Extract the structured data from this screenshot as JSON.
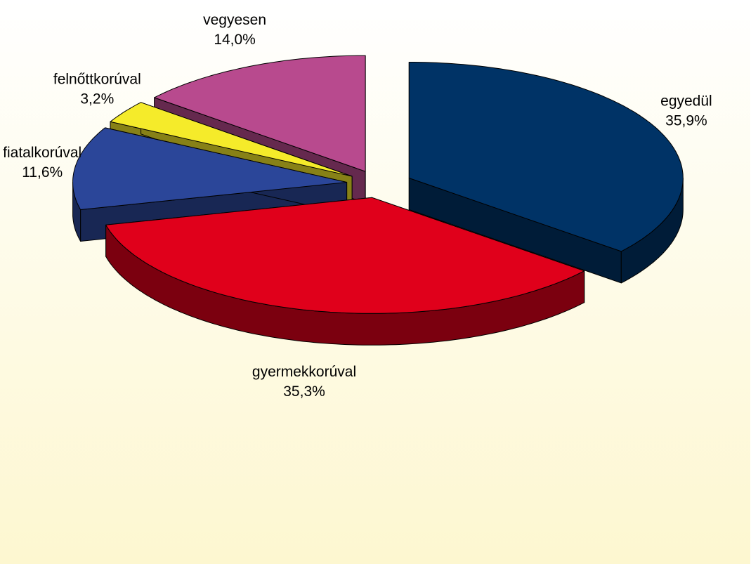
{
  "chart_data": {
    "type": "pie",
    "categories": [
      "egyedül",
      "gyermekkorúval",
      "fiatalkorúval",
      "felnőttkorúval",
      "vegyesen"
    ],
    "values": [
      35.9,
      35.3,
      11.6,
      3.2,
      14.0
    ],
    "value_labels": [
      "35,9%",
      "35,3%",
      "11,6%",
      "3,2%",
      "14,0%"
    ],
    "colors": [
      "#003366",
      "#e0001b",
      "#2b4699",
      "#f5eb2a",
      "#b84a8e"
    ]
  }
}
